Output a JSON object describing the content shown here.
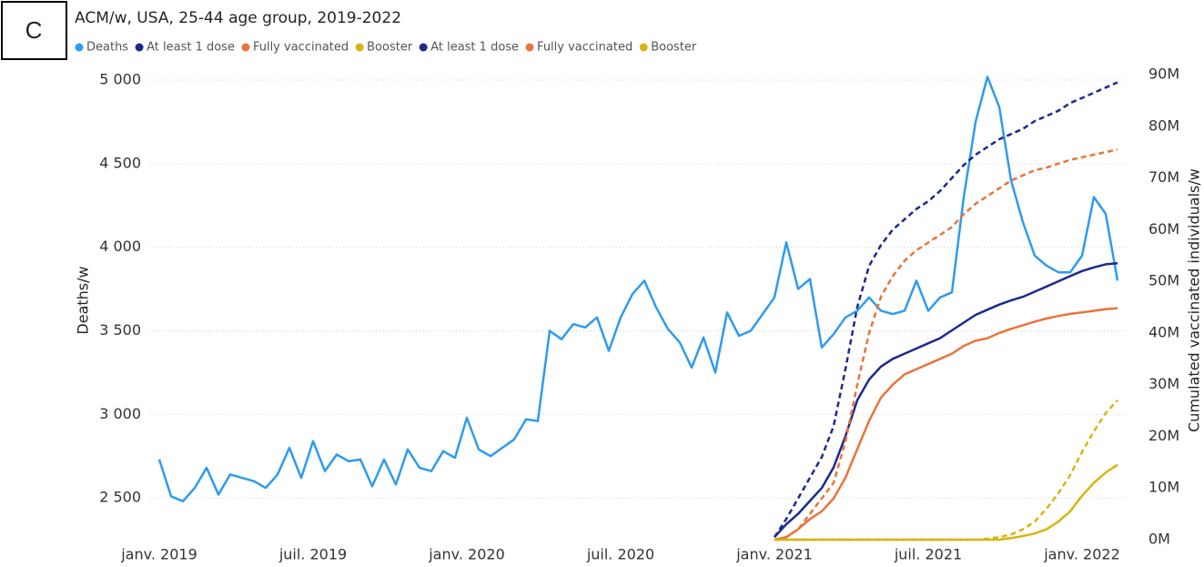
{
  "chart_data": {
    "type": "line",
    "panel_label": "C",
    "title": "ACM/w, USA, 25-44 age group, 2019-2022",
    "ylabel": "Deaths/w",
    "y2label": "Cumulated vaccinated individuals/w",
    "categories": [
      "janv. 2019",
      null,
      null,
      null,
      null,
      null,
      null,
      null,
      null,
      null,
      null,
      null,
      null,
      "juil. 2019",
      null,
      null,
      null,
      null,
      null,
      null,
      null,
      null,
      null,
      null,
      null,
      null,
      "janv. 2020",
      null,
      null,
      null,
      null,
      null,
      null,
      null,
      null,
      null,
      null,
      null,
      null,
      "juil. 2020",
      null,
      null,
      null,
      null,
      null,
      null,
      null,
      null,
      null,
      null,
      null,
      null,
      "janv. 2021",
      null,
      null,
      null,
      null,
      null,
      null,
      null,
      null,
      null,
      null,
      null,
      null,
      "juil. 2021",
      null,
      null,
      null,
      null,
      null,
      null,
      null,
      null,
      null,
      null,
      null,
      null,
      "janv. 2022",
      null,
      null,
      null
    ],
    "ylim": [
      2250,
      5033
    ],
    "yticks": [
      {
        "value": 2500,
        "label": "2 500"
      },
      {
        "value": 3000,
        "label": "3 000"
      },
      {
        "value": 3500,
        "label": "3 500"
      },
      {
        "value": 4000,
        "label": "4 000"
      },
      {
        "value": 4500,
        "label": "4 500"
      },
      {
        "value": 5000,
        "label": "5 000"
      }
    ],
    "y2lim": [
      0,
      90000000
    ],
    "y2ticks": [
      {
        "value": 0,
        "label": "0M"
      },
      {
        "value": 10000000,
        "label": "10M"
      },
      {
        "value": 20000000,
        "label": "20M"
      },
      {
        "value": 30000000,
        "label": "30M"
      },
      {
        "value": 40000000,
        "label": "40M"
      },
      {
        "value": 50000000,
        "label": "50M"
      },
      {
        "value": 60000000,
        "label": "60M"
      },
      {
        "value": 70000000,
        "label": "70M"
      },
      {
        "value": 80000000,
        "label": "80M"
      },
      {
        "value": 90000000,
        "label": "90M"
      }
    ],
    "grid": true,
    "legend": "top-left",
    "series": [
      {
        "name": "Deaths",
        "color": "#2e9bf0",
        "dashed": false,
        "values": [
          2730,
          2510,
          2480,
          2560,
          2680,
          2520,
          2640,
          2620,
          2600,
          2560,
          2640,
          2800,
          2620,
          2840,
          2660,
          2760,
          2720,
          2730,
          2570,
          2730,
          2580,
          2790,
          2680,
          2660,
          2780,
          2740,
          2980,
          2790,
          2750,
          2800,
          2850,
          2970,
          2960,
          3500,
          3450,
          3540,
          3520,
          3580,
          3380,
          3580,
          3720,
          3800,
          3640,
          3510,
          3430,
          3280,
          3460,
          3250,
          3610,
          3470,
          3500,
          3600,
          3700,
          4030,
          3750,
          3810,
          3400,
          3480,
          3580,
          3620,
          3700,
          3620,
          3600,
          3620,
          3800,
          3620,
          3700,
          3730,
          4300,
          4750,
          5020,
          4840,
          4400,
          4150,
          3950,
          3890,
          3850,
          3850,
          3950,
          4300,
          4200,
          3800
        ]
      },
      {
        "name": "At least 1 dose",
        "color": "#1c2a8f",
        "dashed": false,
        "axis": "y2",
        "values": [
          null,
          null,
          null,
          null,
          null,
          null,
          null,
          null,
          null,
          null,
          null,
          null,
          null,
          null,
          null,
          null,
          null,
          null,
          null,
          null,
          null,
          null,
          null,
          null,
          null,
          null,
          null,
          null,
          null,
          null,
          null,
          null,
          null,
          null,
          null,
          null,
          null,
          null,
          null,
          null,
          null,
          null,
          null,
          null,
          null,
          null,
          null,
          null,
          null,
          null,
          null,
          null,
          500000,
          3000000,
          5000000,
          7500000,
          10000000,
          14000000,
          20000000,
          27000000,
          31000000,
          33500000,
          35000000,
          36000000,
          37000000,
          38000000,
          39000000,
          40500000,
          42000000,
          43500000,
          44500000,
          45500000,
          46300000,
          47000000,
          48000000,
          49000000,
          50000000,
          51000000,
          52000000,
          52700000,
          53300000,
          53500000
        ]
      },
      {
        "name": "Fully vaccinated",
        "color": "#e8743b",
        "dashed": false,
        "axis": "y2",
        "values": [
          null,
          null,
          null,
          null,
          null,
          null,
          null,
          null,
          null,
          null,
          null,
          null,
          null,
          null,
          null,
          null,
          null,
          null,
          null,
          null,
          null,
          null,
          null,
          null,
          null,
          null,
          null,
          null,
          null,
          null,
          null,
          null,
          null,
          null,
          null,
          null,
          null,
          null,
          null,
          null,
          null,
          null,
          null,
          null,
          null,
          null,
          null,
          null,
          null,
          null,
          null,
          null,
          0,
          500000,
          2000000,
          4000000,
          5500000,
          8000000,
          12000000,
          17500000,
          23000000,
          27500000,
          30000000,
          32000000,
          33000000,
          34000000,
          35000000,
          36000000,
          37500000,
          38500000,
          39000000,
          40000000,
          40800000,
          41500000,
          42200000,
          42800000,
          43300000,
          43700000,
          44000000,
          44300000,
          44600000,
          44800000
        ]
      },
      {
        "name": "Booster",
        "color": "#d9b411",
        "dashed": false,
        "axis": "y2",
        "values": [
          null,
          null,
          null,
          null,
          null,
          null,
          null,
          null,
          null,
          null,
          null,
          null,
          null,
          null,
          null,
          null,
          null,
          null,
          null,
          null,
          null,
          null,
          null,
          null,
          null,
          null,
          null,
          null,
          null,
          null,
          null,
          null,
          null,
          null,
          null,
          null,
          null,
          null,
          null,
          null,
          null,
          null,
          null,
          null,
          null,
          null,
          null,
          null,
          null,
          null,
          null,
          null,
          0,
          0,
          0,
          0,
          0,
          0,
          0,
          0,
          0,
          0,
          0,
          0,
          0,
          0,
          0,
          0,
          0,
          0,
          0,
          0,
          300000,
          700000,
          1200000,
          2000000,
          3500000,
          5500000,
          8500000,
          11000000,
          13000000,
          14500000
        ]
      },
      {
        "name": "At least 1 dose",
        "color": "#1c2a8f",
        "dashed": true,
        "axis": "y2",
        "values": [
          null,
          null,
          null,
          null,
          null,
          null,
          null,
          null,
          null,
          null,
          null,
          null,
          null,
          null,
          null,
          null,
          null,
          null,
          null,
          null,
          null,
          null,
          null,
          null,
          null,
          null,
          null,
          null,
          null,
          null,
          null,
          null,
          null,
          null,
          null,
          null,
          null,
          null,
          null,
          null,
          null,
          null,
          null,
          null,
          null,
          null,
          null,
          null,
          null,
          null,
          null,
          null,
          500000,
          4000000,
          8000000,
          12000000,
          16000000,
          22000000,
          33000000,
          45000000,
          53000000,
          57000000,
          60000000,
          62000000,
          64000000,
          65500000,
          67500000,
          70000000,
          72500000,
          74500000,
          76000000,
          77500000,
          78500000,
          79500000,
          81000000,
          82000000,
          83000000,
          84500000,
          85500000,
          86500000,
          87500000,
          88500000
        ]
      },
      {
        "name": "Fully vaccinated",
        "color": "#e8743b",
        "dashed": true,
        "axis": "y2",
        "values": [
          null,
          null,
          null,
          null,
          null,
          null,
          null,
          null,
          null,
          null,
          null,
          null,
          null,
          null,
          null,
          null,
          null,
          null,
          null,
          null,
          null,
          null,
          null,
          null,
          null,
          null,
          null,
          null,
          null,
          null,
          null,
          null,
          null,
          null,
          null,
          null,
          null,
          null,
          null,
          null,
          null,
          null,
          null,
          null,
          null,
          null,
          null,
          null,
          null,
          null,
          null,
          null,
          0,
          500000,
          2000000,
          5000000,
          8000000,
          11000000,
          19000000,
          30000000,
          40000000,
          47000000,
          51000000,
          54000000,
          56000000,
          57500000,
          59000000,
          60500000,
          63000000,
          65000000,
          66500000,
          68000000,
          69500000,
          70500000,
          71500000,
          72000000,
          72800000,
          73500000,
          74000000,
          74500000,
          75000000,
          75500000
        ]
      },
      {
        "name": "Booster",
        "color": "#d9b411",
        "dashed": true,
        "axis": "y2",
        "values": [
          null,
          null,
          null,
          null,
          null,
          null,
          null,
          null,
          null,
          null,
          null,
          null,
          null,
          null,
          null,
          null,
          null,
          null,
          null,
          null,
          null,
          null,
          null,
          null,
          null,
          null,
          null,
          null,
          null,
          null,
          null,
          null,
          null,
          null,
          null,
          null,
          null,
          null,
          null,
          null,
          null,
          null,
          null,
          null,
          null,
          null,
          null,
          null,
          null,
          null,
          null,
          null,
          0,
          0,
          0,
          0,
          0,
          0,
          0,
          0,
          0,
          0,
          0,
          0,
          0,
          0,
          0,
          0,
          0,
          0,
          200000,
          500000,
          1000000,
          2000000,
          3500000,
          6000000,
          9000000,
          12500000,
          17000000,
          21000000,
          24500000,
          27000000
        ]
      }
    ]
  }
}
